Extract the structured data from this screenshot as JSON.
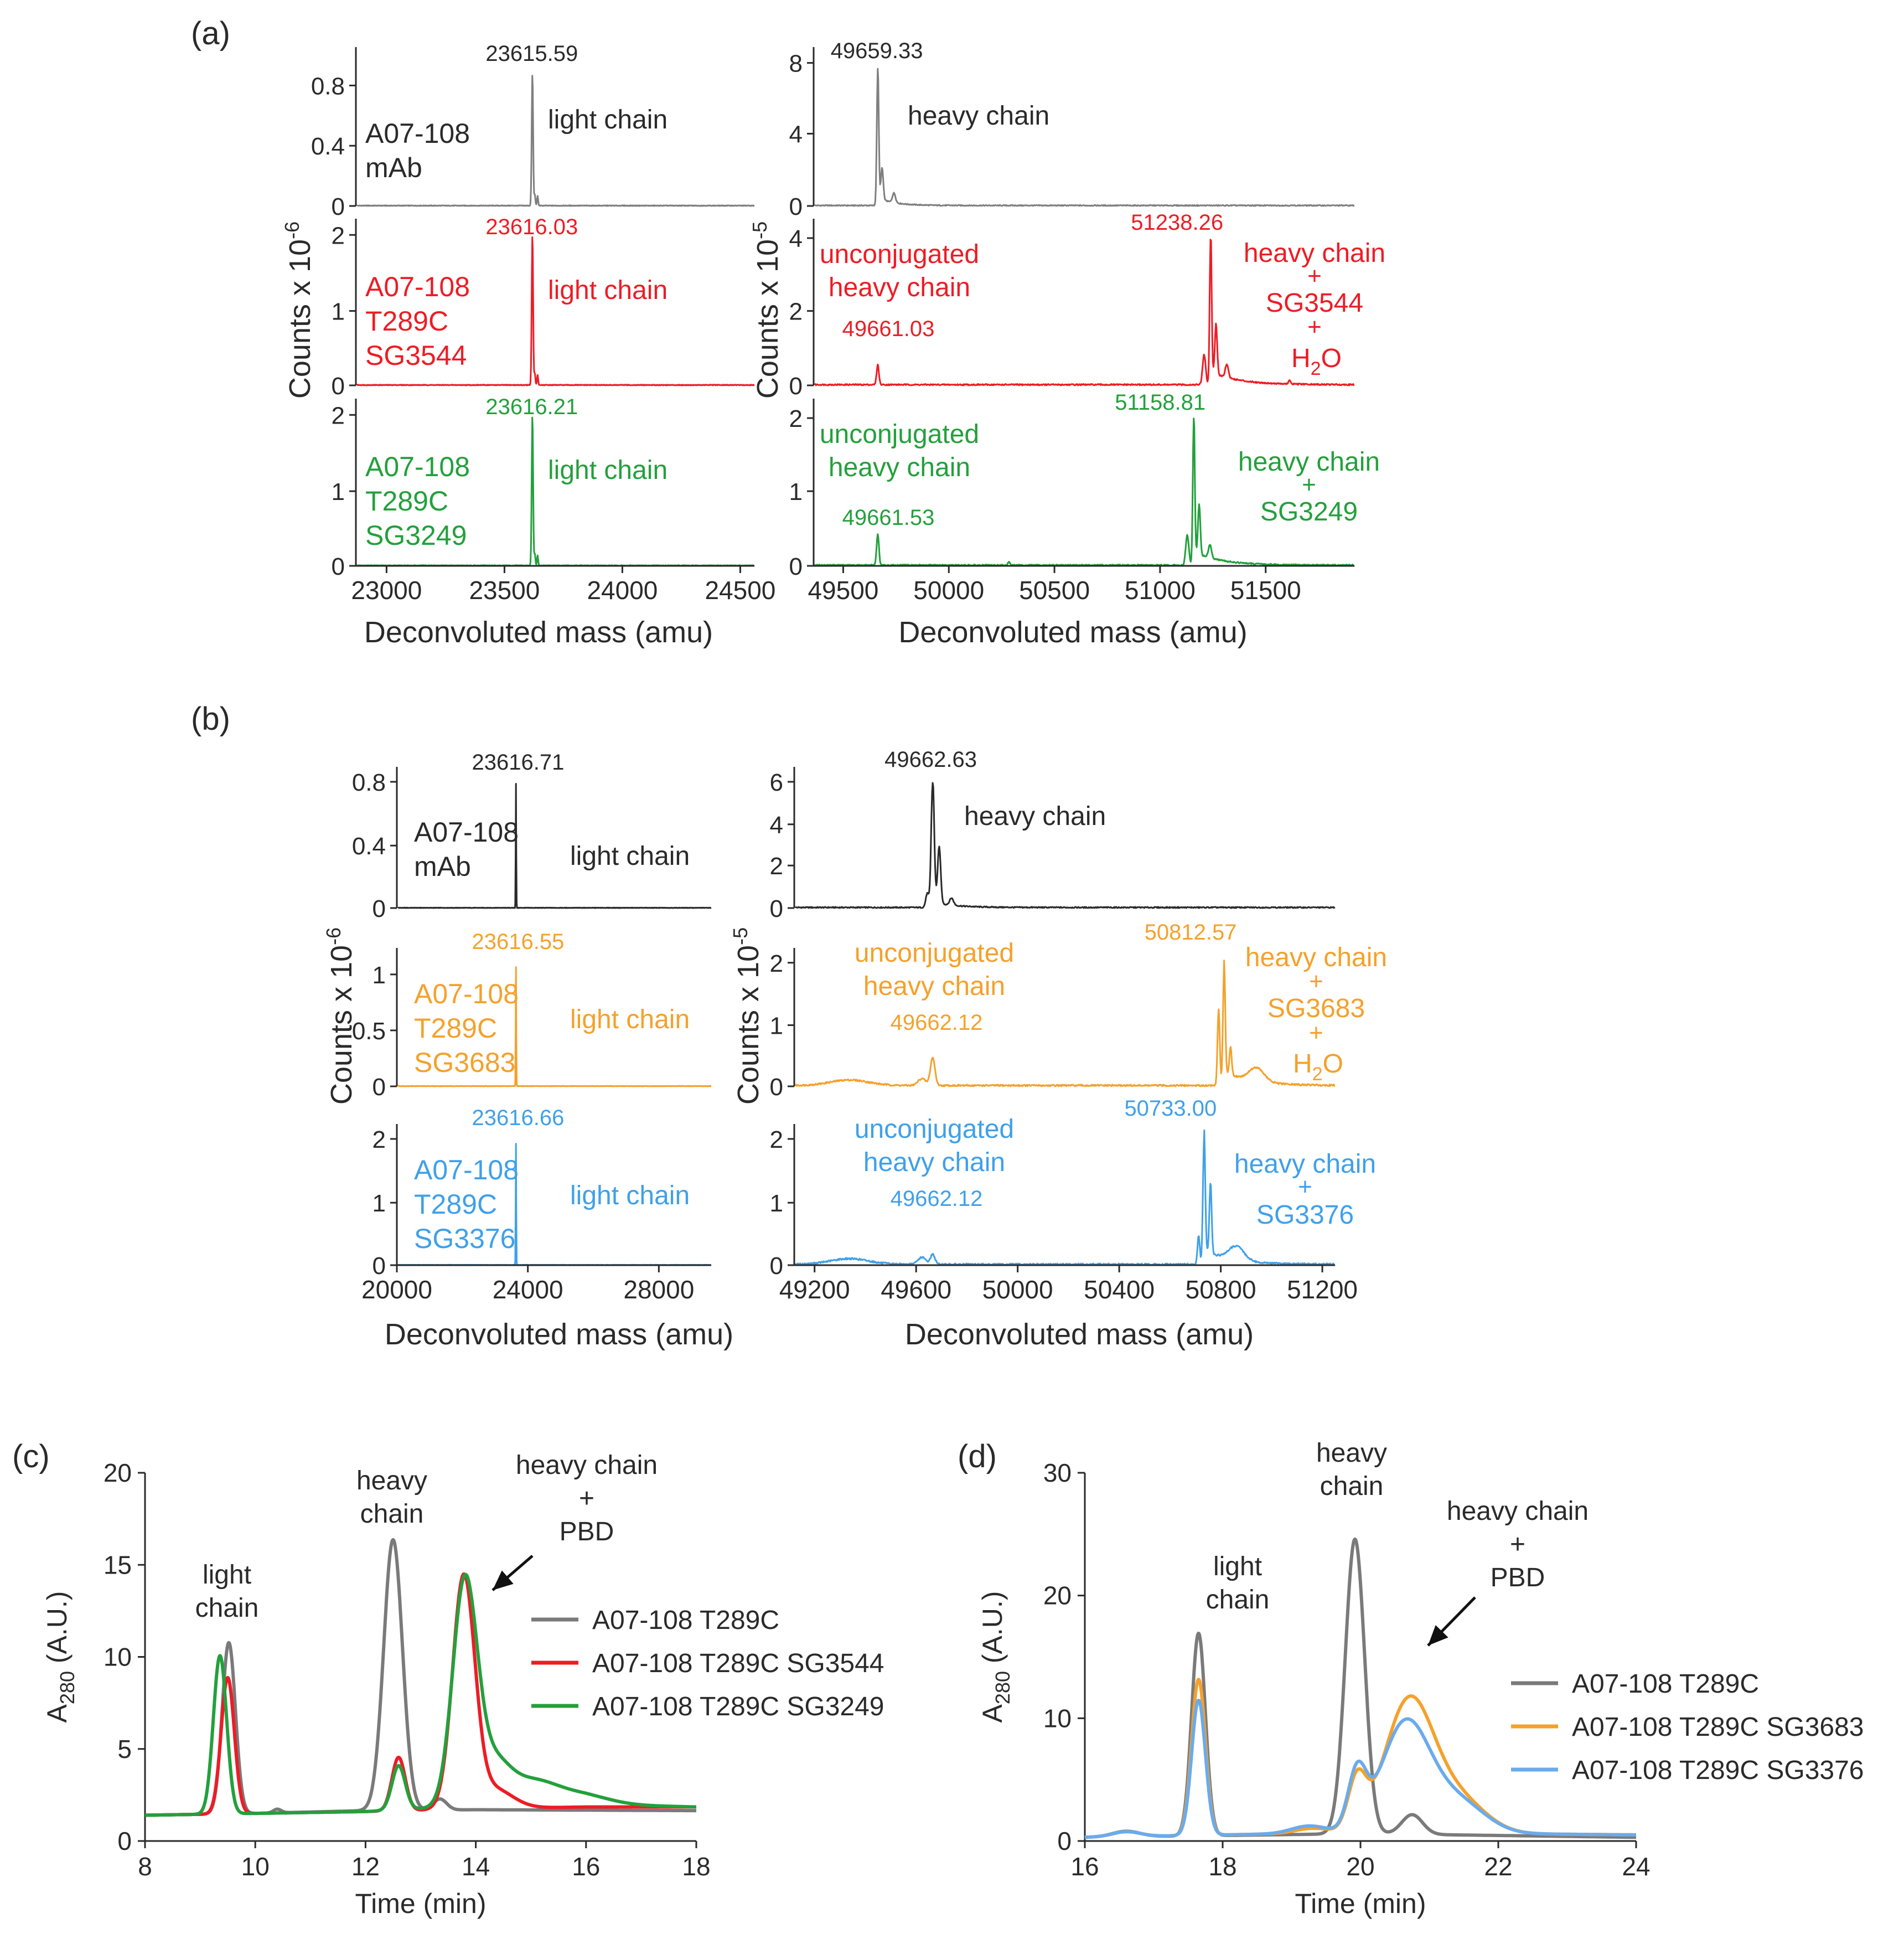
{
  "colors": {
    "black": "#2a2a2a",
    "gray": "#7f7f7f",
    "red": "#ee1c25",
    "green": "#23a03c",
    "orange": "#f5a12b",
    "blue": "#3fa0ea",
    "arrow": "#111111"
  },
  "panels": {
    "a": {
      "label": "(a)",
      "left_x_axis": {
        "ticks": [
          "23000",
          "23500",
          "24000",
          "24500"
        ],
        "label": "Deconvoluted mass (amu)"
      },
      "right_x_axis": {
        "ticks": [
          "49500",
          "50000",
          "50500",
          "51000",
          "51500"
        ],
        "label": "Deconvoluted mass (amu)"
      },
      "left_y_label": "Counts x 10",
      "left_y_exp": "-6",
      "right_y_label": "Counts x 10",
      "right_y_exp": "-5",
      "rows": [
        {
          "sample": [
            "A07-108",
            "mAb"
          ],
          "left_peak": "23615.59",
          "left_annot": "light chain",
          "left_ticks": [
            "0.8",
            "0.4",
            "0"
          ],
          "right_peak": "49659.33",
          "right_annot": [
            "heavy chain"
          ],
          "right_ticks": [
            "8",
            "4",
            "0"
          ]
        },
        {
          "sample": [
            "A07-108",
            "T289C",
            "SG3544"
          ],
          "left_peak": "23616.03",
          "left_annot": "light chain",
          "left_ticks": [
            "2",
            "1",
            "0"
          ],
          "right_unconj": [
            "unconjugated",
            "heavy chain"
          ],
          "right_small_peak": "49661.03",
          "right_peak": "51238.26",
          "right_annot": [
            "heavy chain",
            "+",
            "SG3544",
            "+",
            "H",
            "2",
            "O"
          ],
          "right_ticks": [
            "4",
            "2",
            "0"
          ]
        },
        {
          "sample": [
            "A07-108",
            "T289C",
            "SG3249"
          ],
          "left_peak": "23616.21",
          "left_annot": "light chain",
          "left_ticks": [
            "2",
            "1",
            "0"
          ],
          "right_unconj": [
            "unconjugated",
            "heavy chain"
          ],
          "right_small_peak": "49661.53",
          "right_peak": "51158.81",
          "right_annot": [
            "heavy chain",
            "+",
            "SG3249"
          ],
          "right_ticks": [
            "2",
            "1",
            "0"
          ]
        }
      ]
    },
    "b": {
      "label": "(b)",
      "left_x_axis": {
        "ticks": [
          "20000",
          "24000",
          "28000"
        ],
        "label": "Deconvoluted mass (amu)"
      },
      "right_x_axis": {
        "ticks": [
          "49200",
          "49600",
          "50000",
          "50400",
          "50800",
          "51200"
        ],
        "label": "Deconvoluted mass (amu)"
      },
      "left_y_label": "Counts x 10",
      "left_y_exp": "-6",
      "right_y_label": "Counts x 10",
      "right_y_exp": "-5",
      "rows": [
        {
          "sample": [
            "A07-108",
            "mAb"
          ],
          "left_peak": "23616.71",
          "left_annot": "light chain",
          "left_ticks": [
            "0.8",
            "0.4",
            "0"
          ],
          "right_peak": "49662.63",
          "right_annot": [
            "heavy chain"
          ],
          "right_ticks": [
            "6",
            "4",
            "2",
            "0"
          ]
        },
        {
          "sample": [
            "A07-108",
            "T289C",
            "SG3683"
          ],
          "left_peak": "23616.55",
          "left_annot": "light chain",
          "left_ticks": [
            "1",
            "0.5",
            "0"
          ],
          "right_unconj": [
            "unconjugated",
            "heavy chain"
          ],
          "right_small_peak": "49662.12",
          "right_peak": "50812.57",
          "right_annot": [
            "heavy chain",
            "+",
            "SG3683",
            "+",
            "H",
            "2",
            "O"
          ],
          "right_ticks": [
            "2",
            "1",
            "0"
          ]
        },
        {
          "sample": [
            "A07-108",
            "T289C",
            "SG3376"
          ],
          "left_peak": "23616.66",
          "left_annot": "light chain",
          "left_ticks": [
            "2",
            "1",
            "0"
          ],
          "right_unconj": [
            "unconjugated",
            "heavy chain"
          ],
          "right_small_peak": "49662.12",
          "right_peak": "50733.00",
          "right_annot": [
            "heavy chain",
            "+",
            "SG3376"
          ],
          "right_ticks": [
            "2",
            "1",
            "0"
          ]
        }
      ]
    },
    "c": {
      "label": "(c)",
      "annotations": {
        "light": [
          "light",
          "chain"
        ],
        "heavy": [
          "heavy",
          "chain"
        ],
        "conj": [
          "heavy chain",
          "+",
          "PBD"
        ]
      }
    },
    "d": {
      "label": "(d)",
      "annotations": {
        "light": [
          "light",
          "chain"
        ],
        "heavy": [
          "heavy",
          "chain"
        ],
        "conj": [
          "heavy chain",
          "+",
          "PBD"
        ]
      }
    }
  },
  "chart_data": [
    {
      "id": "c",
      "type": "line",
      "title": "",
      "xlabel": "Time (min)",
      "ylabel": "A",
      "ylabel_sub": "280",
      "ylabel_rest": " (A.U.)",
      "xlim": [
        8,
        18
      ],
      "ylim": [
        0,
        20
      ],
      "xticks": [
        8,
        10,
        12,
        14,
        16,
        18
      ],
      "yticks": [
        0,
        5,
        10,
        15,
        20
      ],
      "legend_position": "right",
      "series": [
        {
          "name": "A07-108 T289C",
          "color": "#7a7a7a",
          "baseline": [
            [
              8,
              1.4
            ],
            [
              10,
              1.5
            ],
            [
              12,
              1.65
            ],
            [
              14,
              1.7
            ],
            [
              18,
              1.65
            ]
          ],
          "peaks": [
            [
              9.52,
              9.3,
              0.12
            ],
            [
              10.4,
              0.2,
              0.07
            ],
            [
              12.5,
              14.7,
              0.17
            ],
            [
              13.35,
              0.6,
              0.12
            ]
          ]
        },
        {
          "name": "A07-108 T289C SG3544",
          "color": "#ee1c25",
          "baseline": [
            [
              8,
              1.4
            ],
            [
              10,
              1.5
            ],
            [
              12,
              1.6
            ],
            [
              14,
              1.75
            ],
            [
              16,
              1.85
            ],
            [
              18,
              1.85
            ]
          ],
          "peaks": [
            [
              9.5,
              7.4,
              0.12
            ],
            [
              12.6,
              2.9,
              0.12
            ],
            [
              13.78,
              12.4,
              0.2
            ],
            [
              14.3,
              1.1,
              0.35
            ]
          ]
        },
        {
          "name": "A07-108 T289C SG3249",
          "color": "#23a03c",
          "baseline": [
            [
              8,
              1.4
            ],
            [
              10,
              1.5
            ],
            [
              12,
              1.6
            ],
            [
              14,
              1.9
            ],
            [
              16,
              2.0
            ],
            [
              18,
              1.85
            ]
          ],
          "peaks": [
            [
              9.36,
              8.6,
              0.12
            ],
            [
              12.6,
              2.4,
              0.12
            ],
            [
              13.8,
              12.0,
              0.22
            ],
            [
              14.3,
              2.2,
              0.3
            ],
            [
              15.0,
              1.25,
              0.45
            ],
            [
              15.9,
              0.5,
              0.5
            ]
          ]
        }
      ]
    },
    {
      "id": "d",
      "type": "line",
      "title": "",
      "xlabel": "Time (min)",
      "ylabel": "A",
      "ylabel_sub": "280",
      "ylabel_rest": " (A.U.)",
      "xlim": [
        16,
        24
      ],
      "ylim": [
        0,
        30
      ],
      "xticks": [
        16,
        18,
        20,
        22,
        24
      ],
      "yticks": [
        0,
        10,
        20,
        30
      ],
      "legend_position": "right",
      "series": [
        {
          "name": "A07-108 T289C",
          "color": "#7a7a7a",
          "baseline": [
            [
              16,
              0.3
            ],
            [
              18,
              0.45
            ],
            [
              20,
              0.6
            ],
            [
              24,
              0.3
            ]
          ],
          "peaks": [
            [
              16.6,
              0.45,
              0.2
            ],
            [
              17.65,
              16.5,
              0.1
            ],
            [
              19.92,
              24.0,
              0.14
            ],
            [
              20.75,
              1.6,
              0.15
            ]
          ]
        },
        {
          "name": "A07-108 T289C SG3683",
          "color": "#f5a12b",
          "baseline": [
            [
              16,
              0.3
            ],
            [
              18,
              0.5
            ],
            [
              20,
              0.7
            ],
            [
              24,
              0.5
            ]
          ],
          "peaks": [
            [
              16.6,
              0.4,
              0.2
            ],
            [
              17.65,
              12.7,
              0.1
            ],
            [
              19.95,
              4.0,
              0.13
            ],
            [
              20.7,
              10.5,
              0.35
            ],
            [
              21.4,
              2.8,
              0.4
            ],
            [
              19.3,
              0.4,
              0.25
            ]
          ]
        },
        {
          "name": "A07-108 T289C SG3376",
          "color": "#6aabec",
          "baseline": [
            [
              16,
              0.3
            ],
            [
              18,
              0.5
            ],
            [
              20,
              0.7
            ],
            [
              24,
              0.5
            ]
          ],
          "peaks": [
            [
              16.6,
              0.4,
              0.2
            ],
            [
              17.65,
              11.0,
              0.1
            ],
            [
              19.95,
              4.5,
              0.13
            ],
            [
              20.65,
              8.8,
              0.35
            ],
            [
              21.4,
              2.6,
              0.4
            ],
            [
              19.25,
              0.6,
              0.25
            ]
          ]
        }
      ]
    }
  ]
}
